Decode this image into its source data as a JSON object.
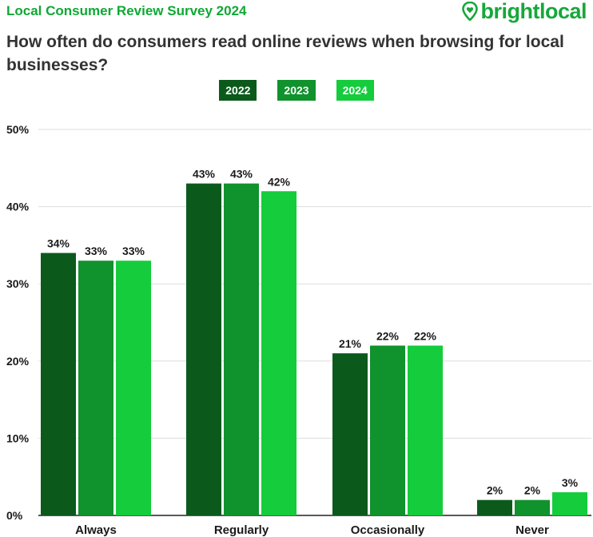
{
  "header": {
    "survey_title": "Local Consumer Review Survey 2024",
    "brand_name": "brightlocal",
    "brand_icon": "location-pin-heart-icon",
    "brand_color": "#16a83a",
    "question": "How often do consumers read online reviews when browsing for local businesses?"
  },
  "chart_data": {
    "type": "bar",
    "title": "How often do consumers read online reviews when browsing for local businesses?",
    "categories": [
      "Always",
      "Regularly",
      "Occasionally",
      "Never"
    ],
    "series": [
      {
        "name": "2022",
        "color": "#0b5a1c",
        "values": [
          34,
          43,
          21,
          2
        ]
      },
      {
        "name": "2023",
        "color": "#10922d",
        "values": [
          33,
          43,
          22,
          2
        ]
      },
      {
        "name": "2024",
        "color": "#14cc3c",
        "values": [
          33,
          42,
          22,
          3
        ]
      }
    ],
    "value_labels": [
      [
        "34%",
        "43%",
        "21%",
        "2%"
      ],
      [
        "33%",
        "43%",
        "22%",
        "2%"
      ],
      [
        "33%",
        "42%",
        "22%",
        "3%"
      ]
    ],
    "y_ticks": [
      0,
      10,
      20,
      30,
      40,
      50
    ],
    "y_tick_labels": [
      "0%",
      "10%",
      "20%",
      "30%",
      "40%",
      "50%"
    ],
    "ylim": [
      0,
      50
    ],
    "xlabel": "",
    "ylabel": "",
    "grid": true,
    "legend_position": "top-center"
  }
}
